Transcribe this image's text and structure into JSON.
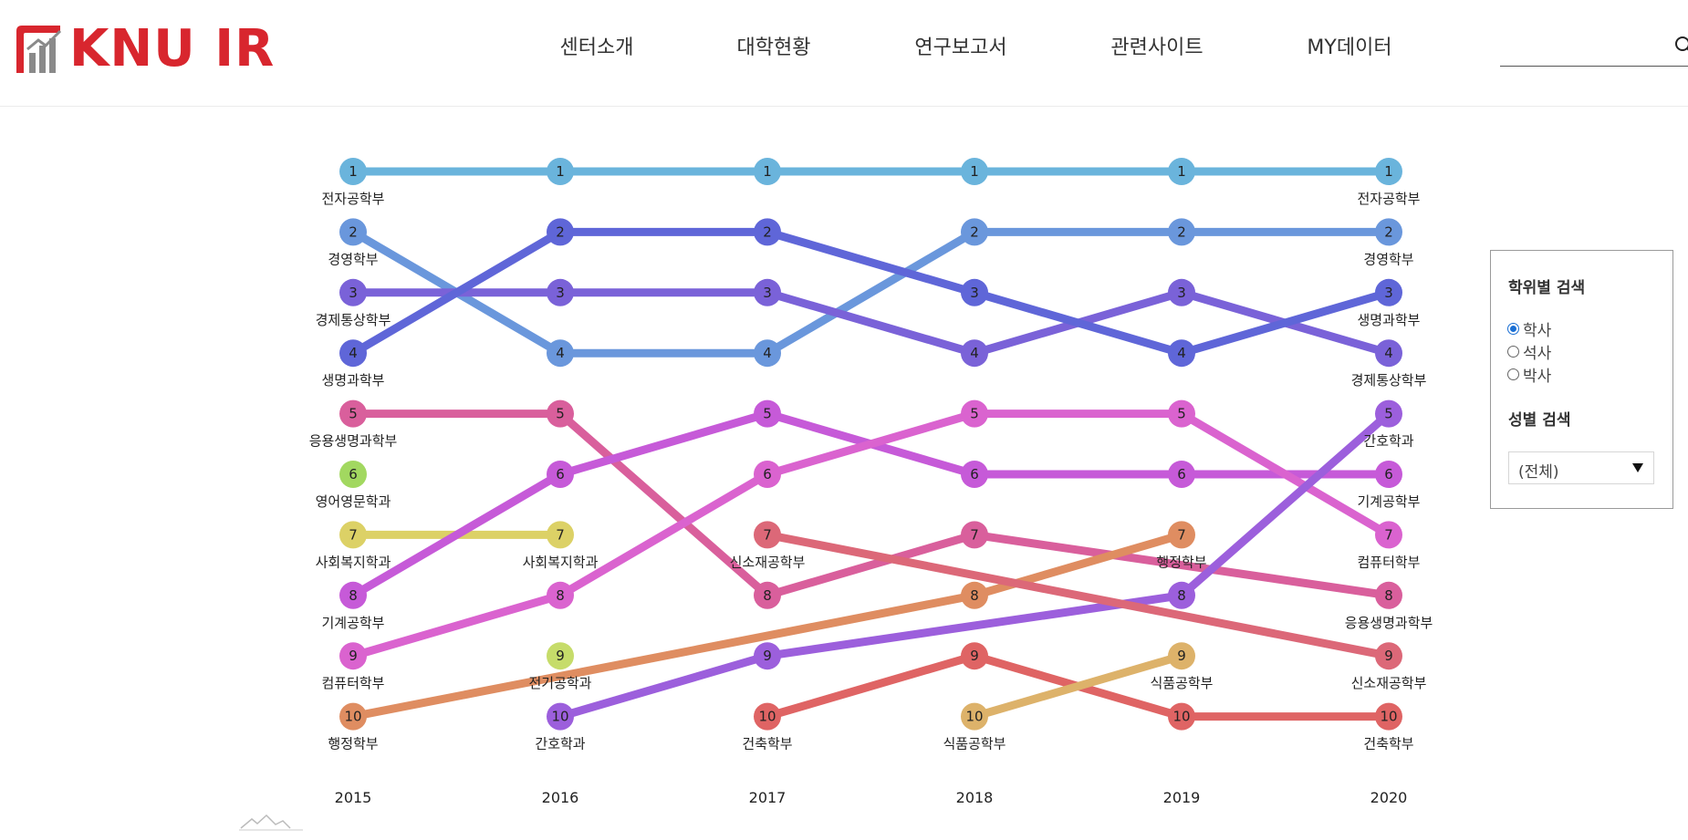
{
  "brand": {
    "name": "KNU IR",
    "color": "#d8262e"
  },
  "nav": {
    "items": [
      {
        "label": "센터소개"
      },
      {
        "label": "대학현황"
      },
      {
        "label": "연구보고서"
      },
      {
        "label": "관련사이트"
      },
      {
        "label": "MY데이터"
      }
    ]
  },
  "search": {
    "placeholder": "",
    "icon": "search-icon"
  },
  "filters": {
    "degree_title": "학위별 검색",
    "degree_options": [
      {
        "label": "학사",
        "checked": true
      },
      {
        "label": "석사",
        "checked": false
      },
      {
        "label": "박사",
        "checked": false
      }
    ],
    "gender_title": "성별 검색",
    "gender_selected": "(전체)"
  },
  "chart_data": {
    "type": "line",
    "title": "",
    "xlabel": "",
    "ylabel": "",
    "x": [
      "2015",
      "2016",
      "2017",
      "2018",
      "2019",
      "2020"
    ],
    "y_axis": "rank",
    "ylim": [
      1,
      10
    ],
    "grid": false,
    "legend": "none",
    "series": [
      {
        "name": "전자공학부",
        "color": "#6ab4dc",
        "ranks": [
          1,
          1,
          1,
          1,
          1,
          1
        ]
      },
      {
        "name": "경영학부",
        "color": "#6a97dc",
        "ranks": [
          2,
          4,
          4,
          2,
          2,
          2
        ]
      },
      {
        "name": "경제통상학부",
        "color": "#7a62d8",
        "ranks": [
          3,
          3,
          3,
          4,
          3,
          4
        ]
      },
      {
        "name": "생명과학부",
        "color": "#5f66d8",
        "ranks": [
          4,
          2,
          2,
          3,
          4,
          3
        ]
      },
      {
        "name": "응용생명과학부",
        "color": "#d95f9c",
        "ranks": [
          5,
          5,
          8,
          7,
          null,
          8
        ]
      },
      {
        "name": "영어영문학과",
        "color": "#a2d860",
        "ranks": [
          6,
          null,
          null,
          null,
          null,
          null
        ]
      },
      {
        "name": "사회복지학과",
        "color": "#dcd166",
        "ranks": [
          7,
          7,
          null,
          null,
          null,
          null
        ]
      },
      {
        "name": "기계공학부",
        "color": "#c65ad8",
        "ranks": [
          8,
          6,
          5,
          6,
          6,
          6
        ]
      },
      {
        "name": "컴퓨터학부",
        "color": "#da63cf",
        "ranks": [
          9,
          8,
          6,
          5,
          5,
          7
        ]
      },
      {
        "name": "행정학부",
        "color": "#df8d61",
        "ranks": [
          10,
          null,
          null,
          8,
          7,
          null
        ]
      },
      {
        "name": "전기공학과",
        "color": "#c6dc6a",
        "ranks": [
          null,
          9,
          null,
          null,
          null,
          null
        ]
      },
      {
        "name": "간호학과",
        "color": "#9c5fdc",
        "ranks": [
          null,
          10,
          9,
          null,
          8,
          5
        ]
      },
      {
        "name": "신소재공학부",
        "color": "#dc6878",
        "ranks": [
          null,
          null,
          7,
          null,
          null,
          9
        ]
      },
      {
        "name": "건축학부",
        "color": "#df6464",
        "ranks": [
          null,
          null,
          10,
          9,
          10,
          10
        ]
      },
      {
        "name": "식품공학부",
        "color": "#ddb26a",
        "ranks": [
          null,
          null,
          null,
          10,
          9,
          null
        ]
      }
    ],
    "name_labels": [
      {
        "series": "전자공학부",
        "x": "2015"
      },
      {
        "series": "경영학부",
        "x": "2015"
      },
      {
        "series": "경제통상학부",
        "x": "2015"
      },
      {
        "series": "생명과학부",
        "x": "2015"
      },
      {
        "series": "응용생명과학부",
        "x": "2015"
      },
      {
        "series": "영어영문학과",
        "x": "2015"
      },
      {
        "series": "사회복지학과",
        "x": "2015"
      },
      {
        "series": "기계공학부",
        "x": "2015"
      },
      {
        "series": "컴퓨터학부",
        "x": "2015"
      },
      {
        "series": "행정학부",
        "x": "2015"
      },
      {
        "series": "사회복지학과",
        "x": "2016"
      },
      {
        "series": "전기공학과",
        "x": "2016"
      },
      {
        "series": "간호학과",
        "x": "2016"
      },
      {
        "series": "신소재공학부",
        "x": "2017"
      },
      {
        "series": "건축학부",
        "x": "2017"
      },
      {
        "series": "식품공학부",
        "x": "2018"
      },
      {
        "series": "행정학부",
        "x": "2019"
      },
      {
        "series": "식품공학부",
        "x": "2019"
      },
      {
        "series": "전자공학부",
        "x": "2020"
      },
      {
        "series": "경영학부",
        "x": "2020"
      },
      {
        "series": "생명과학부",
        "x": "2020"
      },
      {
        "series": "경제통상학부",
        "x": "2020"
      },
      {
        "series": "간호학과",
        "x": "2020"
      },
      {
        "series": "기계공학부",
        "x": "2020"
      },
      {
        "series": "컴퓨터학부",
        "x": "2020"
      },
      {
        "series": "응용생명과학부",
        "x": "2020"
      },
      {
        "series": "신소재공학부",
        "x": "2020"
      },
      {
        "series": "건축학부",
        "x": "2020"
      }
    ]
  }
}
